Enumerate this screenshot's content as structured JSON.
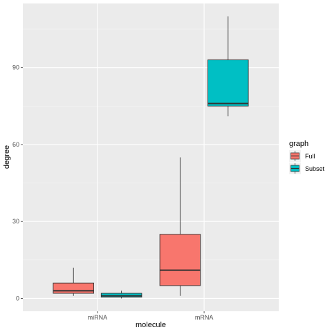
{
  "chart_data": {
    "type": "boxplot",
    "xlabel": "molecule",
    "ylabel": "degree",
    "categories": [
      "miRNA",
      "mRNA"
    ],
    "ylim": [
      -5,
      115
    ],
    "yticks": [
      0,
      30,
      60,
      90
    ],
    "grid": true,
    "legend": {
      "title": "graph",
      "position": "right",
      "entries": [
        "Full",
        "Subset"
      ]
    },
    "series": [
      {
        "name": "Full",
        "color": "#F8766D",
        "boxes": [
          {
            "category": "miRNA",
            "min": 1,
            "q1": 2,
            "median": 3,
            "q3": 6,
            "max": 12
          },
          {
            "category": "mRNA",
            "min": 1,
            "q1": 5,
            "median": 11,
            "q3": 25,
            "max": 55
          }
        ]
      },
      {
        "name": "Subset",
        "color": "#00BFC4",
        "boxes": [
          {
            "category": "miRNA",
            "min": 0,
            "q1": 0.5,
            "median": 1,
            "q3": 2,
            "max": 3
          },
          {
            "category": "mRNA",
            "min": 71,
            "q1": 75,
            "median": 76,
            "q3": 93,
            "max": 110
          }
        ]
      }
    ]
  }
}
